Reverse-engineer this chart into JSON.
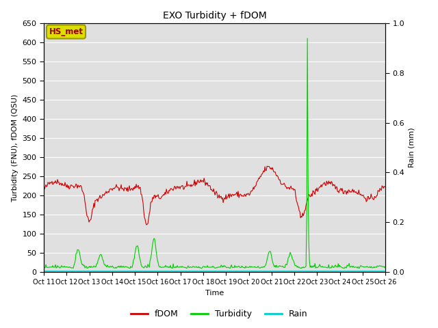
{
  "title": "EXO Turbidity + fDOM",
  "xlabel": "Time",
  "ylabel_left": "Turbidity (FNU), fDOM (QSU)",
  "ylabel_right": "Rain (mm)",
  "ylim_left": [
    0,
    650
  ],
  "ylim_right": [
    0,
    1.0
  ],
  "yticks_left": [
    0,
    50,
    100,
    150,
    200,
    250,
    300,
    350,
    400,
    450,
    500,
    550,
    600,
    650
  ],
  "yticks_right": [
    0.0,
    0.2,
    0.4,
    0.6,
    0.8,
    1.0
  ],
  "xtick_labels": [
    "Oct 11",
    "Oct 12",
    "Oct 13",
    "Oct 14",
    "Oct 15",
    "Oct 16",
    "Oct 17",
    "Oct 18",
    "Oct 19",
    "Oct 20",
    "Oct 21",
    "Oct 22",
    "Oct 23",
    "Oct 24",
    "Oct 25",
    "Oct 26"
  ],
  "fdom_color": "#cc0000",
  "turbidity_color": "#00cc00",
  "rain_color": "#00cccc",
  "background_color": "#e0e0e0",
  "annotation_text": "HS_met",
  "annotation_box_color": "#dddd00",
  "annotation_box_edge": "#999900",
  "grid_color": "#ffffff",
  "legend_labels": [
    "fDOM",
    "Turbidity",
    "Rain"
  ],
  "n_points": 500
}
